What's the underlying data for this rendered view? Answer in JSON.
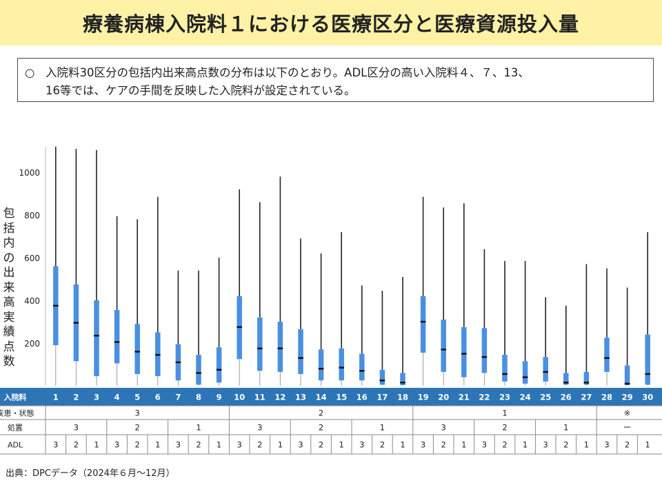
{
  "title": "療養病棟入院料１における医療区分と医療資源投入量",
  "summary": {
    "bullet": "○",
    "line1": "入院料30区分の包括内出来高点数の分布は以下のとおり。ADL区分の高い入院料４、７、13、",
    "line2": "16等では、ケアの手間を反映した入院料が設定されている。"
  },
  "ylabel": "包括内の出来高実績点数",
  "source": "出典：DPCデータ（2024年６月～12月）",
  "colors": {
    "box": "#4A90E2",
    "header": "#2E75B6",
    "title_bg": "#FFF2A6"
  },
  "table": {
    "rows": [
      {
        "label": "入院料",
        "cells": [
          "1",
          "2",
          "3",
          "4",
          "5",
          "6",
          "7",
          "8",
          "9",
          "10",
          "11",
          "12",
          "13",
          "14",
          "15",
          "16",
          "17",
          "18",
          "19",
          "20",
          "21",
          "22",
          "23",
          "24",
          "25",
          "26",
          "27",
          "28",
          "29",
          "30"
        ]
      },
      {
        "label": "疾患・状態",
        "cells": [
          "3",
          "2",
          "1",
          "※"
        ]
      },
      {
        "label": "処置",
        "cells": [
          "3",
          "2",
          "1",
          "3",
          "2",
          "1",
          "3",
          "2",
          "1",
          "ー"
        ]
      },
      {
        "label": "ADL",
        "cells": [
          "3",
          "2",
          "1",
          "3",
          "2",
          "1",
          "3",
          "2",
          "1",
          "3",
          "2",
          "1",
          "3",
          "2",
          "1",
          "3",
          "2",
          "1",
          "3",
          "2",
          "1",
          "3",
          "2",
          "1",
          "3",
          "2",
          "1",
          "3",
          "2",
          "1"
        ]
      }
    ]
  },
  "chart_data": {
    "type": "box",
    "ylabel": "包括内の出来高実績点数",
    "ylim": [
      0,
      1120
    ],
    "yticks": [
      200,
      400,
      600,
      800,
      1000
    ],
    "categories": [
      "1",
      "2",
      "3",
      "4",
      "5",
      "6",
      "7",
      "8",
      "9",
      "10",
      "11",
      "12",
      "13",
      "14",
      "15",
      "16",
      "17",
      "18",
      "19",
      "20",
      "21",
      "22",
      "23",
      "24",
      "25",
      "26",
      "27",
      "28",
      "29",
      "30"
    ],
    "boxes": [
      {
        "q1": 190,
        "median": 375,
        "q3": 560,
        "whisker_high": 1120
      },
      {
        "q1": 115,
        "median": 295,
        "q3": 475,
        "whisker_high": 1110
      },
      {
        "q1": 45,
        "median": 235,
        "q3": 400,
        "whisker_high": 1105
      },
      {
        "q1": 105,
        "median": 205,
        "q3": 355,
        "whisker_high": 795
      },
      {
        "q1": 55,
        "median": 160,
        "q3": 290,
        "whisker_high": 780
      },
      {
        "q1": 45,
        "median": 145,
        "q3": 250,
        "whisker_high": 885
      },
      {
        "q1": 25,
        "median": 110,
        "q3": 195,
        "whisker_high": 540
      },
      {
        "q1": 5,
        "median": 60,
        "q3": 145,
        "whisker_high": 540
      },
      {
        "q1": 15,
        "median": 75,
        "q3": 180,
        "whisker_high": 600
      },
      {
        "q1": 125,
        "median": 275,
        "q3": 420,
        "whisker_high": 920
      },
      {
        "q1": 70,
        "median": 175,
        "q3": 320,
        "whisker_high": 860
      },
      {
        "q1": 65,
        "median": 175,
        "q3": 300,
        "whisker_high": 980
      },
      {
        "q1": 55,
        "median": 130,
        "q3": 265,
        "whisker_high": 690
      },
      {
        "q1": 25,
        "median": 80,
        "q3": 170,
        "whisker_high": 620
      },
      {
        "q1": 25,
        "median": 85,
        "q3": 175,
        "whisker_high": 720
      },
      {
        "q1": 25,
        "median": 70,
        "q3": 150,
        "whisker_high": 470
      },
      {
        "q1": 5,
        "median": 25,
        "q3": 75,
        "whisker_high": 445
      },
      {
        "q1": 3,
        "median": 15,
        "q3": 60,
        "whisker_high": 510
      },
      {
        "q1": 155,
        "median": 300,
        "q3": 420,
        "whisker_high": 885
      },
      {
        "q1": 65,
        "median": 170,
        "q3": 310,
        "whisker_high": 835
      },
      {
        "q1": 40,
        "median": 150,
        "q3": 275,
        "whisker_high": 855
      },
      {
        "q1": 60,
        "median": 135,
        "q3": 270,
        "whisker_high": 640
      },
      {
        "q1": 20,
        "median": 55,
        "q3": 145,
        "whisker_high": 585
      },
      {
        "q1": 10,
        "median": 40,
        "q3": 115,
        "whisker_high": 585
      },
      {
        "q1": 20,
        "median": 65,
        "q3": 135,
        "whisker_high": 415
      },
      {
        "q1": 5,
        "median": 15,
        "q3": 60,
        "whisker_high": 375
      },
      {
        "q1": 5,
        "median": 15,
        "q3": 65,
        "whisker_high": 570
      },
      {
        "q1": 65,
        "median": 130,
        "q3": 225,
        "whisker_high": 550
      },
      {
        "q1": 3,
        "median": 10,
        "q3": 95,
        "whisker_high": 460
      },
      {
        "q1": 5,
        "median": 55,
        "q3": 240,
        "whisker_high": 720
      }
    ]
  }
}
